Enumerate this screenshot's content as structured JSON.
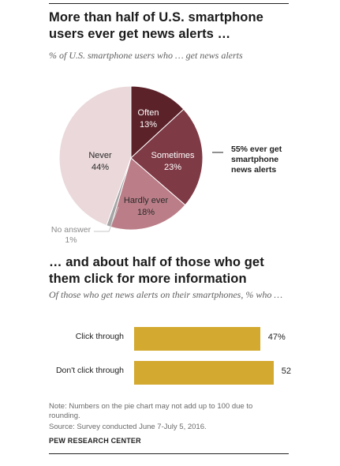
{
  "title": "More than half of U.S. smartphone users ever get news alerts …",
  "subtitle": "% of U.S. smartphone users who … get news alerts",
  "callout": [
    "55% ever get",
    "smartphone",
    "news alerts"
  ],
  "title2": "… and about half of those who get them click for more information",
  "subtitle2": "Of those who get news alerts on their smartphones, % who …",
  "note": "Note: Numbers on the pie chart may not add up to 100 due to rounding.",
  "source": "Source: Survey conducted June 7-July 5, 2016.",
  "org": "PEW RESEARCH CENTER",
  "colors": {
    "often": "#5b2229",
    "sometimes": "#7e3a45",
    "hardly_ever": "#bb7e88",
    "no_answer": "#a5a5a5",
    "never": "#ead8da",
    "bar": "#d3a92f"
  },
  "chart_data": [
    {
      "type": "pie",
      "title": "More than half of U.S. smartphone users ever get news alerts …",
      "subtitle": "% of U.S. smartphone users who … get news alerts",
      "slices": [
        {
          "name": "Often",
          "value": 13,
          "label": "13%"
        },
        {
          "name": "Sometimes",
          "value": 23,
          "label": "23%"
        },
        {
          "name": "Hardly ever",
          "value": 18,
          "label": "18%"
        },
        {
          "name": "No answer",
          "value": 1,
          "label": "1%"
        },
        {
          "name": "Never",
          "value": 44,
          "label": "44%"
        }
      ]
    },
    {
      "type": "bar",
      "orientation": "horizontal",
      "title": "… and about half of those who get them click for more information",
      "subtitle": "Of those who get news alerts on their smartphones, % who …",
      "categories": [
        "Click through",
        "Don't click through"
      ],
      "values": [
        47,
        52
      ],
      "value_labels": [
        "47%",
        "52"
      ]
    }
  ]
}
